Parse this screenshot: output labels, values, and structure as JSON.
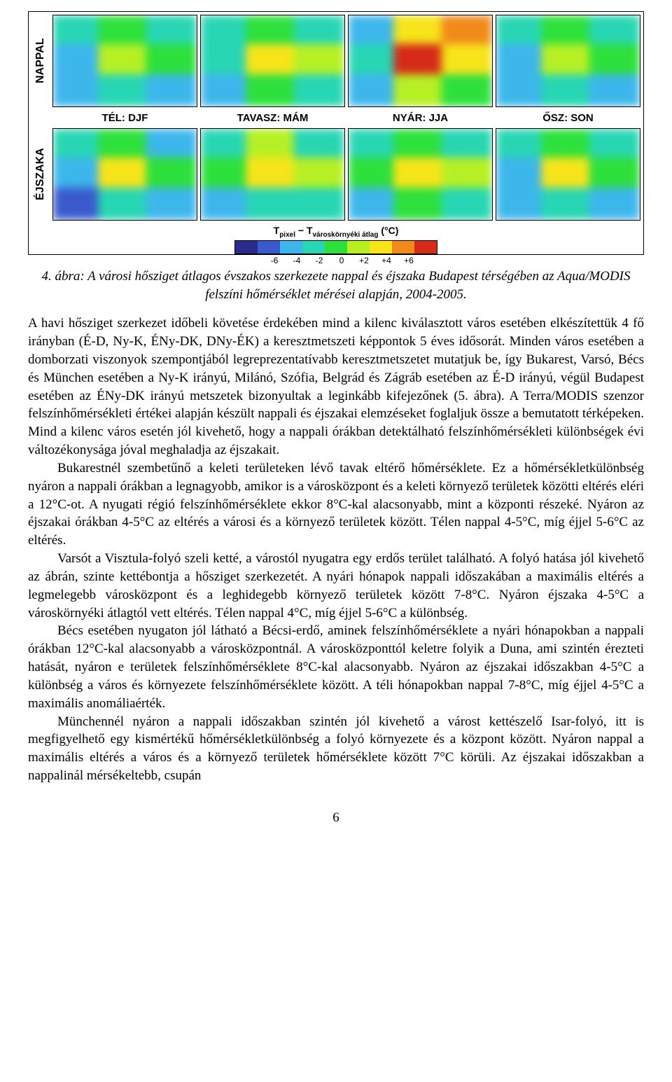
{
  "figure": {
    "row_labels": [
      "NAPPAL",
      "ÉJSZAKA"
    ],
    "col_labels": [
      "TÉL: DJF",
      "TAVASZ: MÁM",
      "NYÁR: JJA",
      "ŐSZ: SON"
    ],
    "legend_title": "Tpixel − Tvároskörnyéki átlag (°C)",
    "legend_sub1": "pixel",
    "legend_sub2": "városkörnyéki átlag",
    "scale_colors": [
      "#2b2b8c",
      "#3a5acc",
      "#3db6ec",
      "#28d6b4",
      "#2ee03c",
      "#b6f024",
      "#f7e41a",
      "#f08a1a",
      "#d62a1a"
    ],
    "scale_ticks": [
      "-6",
      "-4",
      "-2",
      "0",
      "+2",
      "+4",
      "+6"
    ],
    "maps": {
      "nappal_djf": [
        [
          "#28d6b4",
          "#2ee03c",
          "#28d6b4"
        ],
        [
          "#3db6ec",
          "#b6f024",
          "#2ee03c"
        ],
        [
          "#3db6ec",
          "#28d6b4",
          "#3db6ec"
        ]
      ],
      "nappal_mam": [
        [
          "#28d6b4",
          "#2ee03c",
          "#28d6b4"
        ],
        [
          "#28d6b4",
          "#f7e41a",
          "#b6f024"
        ],
        [
          "#3db6ec",
          "#2ee03c",
          "#28d6b4"
        ]
      ],
      "nappal_jja": [
        [
          "#3db6ec",
          "#f7e41a",
          "#f08a1a"
        ],
        [
          "#28d6b4",
          "#d62a1a",
          "#f7e41a"
        ],
        [
          "#3db6ec",
          "#b6f024",
          "#2ee03c"
        ]
      ],
      "nappal_son": [
        [
          "#28d6b4",
          "#2ee03c",
          "#28d6b4"
        ],
        [
          "#3db6ec",
          "#b6f024",
          "#2ee03c"
        ],
        [
          "#3db6ec",
          "#28d6b4",
          "#3db6ec"
        ]
      ],
      "ejszaka_djf": [
        [
          "#28d6b4",
          "#2ee03c",
          "#3db6ec"
        ],
        [
          "#3db6ec",
          "#f7e41a",
          "#2ee03c"
        ],
        [
          "#3a5acc",
          "#28d6b4",
          "#3db6ec"
        ]
      ],
      "ejszaka_mam": [
        [
          "#28d6b4",
          "#b6f024",
          "#28d6b4"
        ],
        [
          "#2ee03c",
          "#f7e41a",
          "#b6f024"
        ],
        [
          "#3db6ec",
          "#28d6b4",
          "#28d6b4"
        ]
      ],
      "ejszaka_jja": [
        [
          "#28d6b4",
          "#2ee03c",
          "#28d6b4"
        ],
        [
          "#2ee03c",
          "#f7e41a",
          "#b6f024"
        ],
        [
          "#3db6ec",
          "#2ee03c",
          "#28d6b4"
        ]
      ],
      "ejszaka_son": [
        [
          "#28d6b4",
          "#2ee03c",
          "#28d6b4"
        ],
        [
          "#3db6ec",
          "#f7e41a",
          "#2ee03c"
        ],
        [
          "#3db6ec",
          "#28d6b4",
          "#3db6ec"
        ]
      ]
    }
  },
  "caption": "4. ábra: A városi hősziget átlagos évszakos szerkezete nappal és éjszaka Budapest térségében az Aqua/MODIS felszíni hőmérséklet mérései alapján, 2004-2005.",
  "paragraphs": [
    "A havi hősziget szerkezet időbeli követése érdekében mind a kilenc kiválasztott város esetében elkészítettük 4 fő irányban (É-D, Ny-K, ÉNy-DK, DNy-ÉK) a keresztmetszeti képpontok 5 éves idősorát. Minden város esetében a domborzati viszonyok szempontjából legreprezentatívabb keresztmetszetet mutatjuk be, így Bukarest, Varsó, Bécs és München esetében a Ny-K irányú, Milánó, Szófia, Belgrád és Zágráb esetében az É-D irányú, végül Budapest esetében az ÉNy-DK irányú metszetek bizonyultak a leginkább kifejezőnek (5. ábra). A Terra/MODIS szenzor felszínhőmérsékleti értékei alapján készült nappali és éjszakai elemzéseket foglaljuk össze a bemutatott térképeken. Mind a kilenc város esetén jól kivehető, hogy a nappali órákban detektálható felszínhőmérsékleti különbségek évi változékonysága jóval meghaladja az éjszakait.",
    "Bukarestnél szembetűnő a keleti területeken lévő tavak eltérő hőmérséklete. Ez a hőmérsékletkülönbség nyáron a nappali órákban a legnagyobb, amikor is a városközpont és a keleti környező területek közötti eltérés eléri a 12°C-ot. A nyugati régió felszínhőmérséklete ekkor 8°C-kal alacsonyabb, mint a központi részeké. Nyáron az éjszakai órákban 4-5°C az eltérés a városi és a környező területek között. Télen nappal 4-5°C, míg éjjel 5-6°C az eltérés.",
    "Varsót a Visztula-folyó szeli ketté, a várostól nyugatra egy erdős terület található. A folyó hatása jól kivehető az ábrán, szinte kettébontja a hősziget szerkezetét. A nyári hónapok nappali időszakában a maximális eltérés a legmelegebb városközpont és a leghidegebb környező területek között 7-8°C. Nyáron éjszaka 4-5°C a városkörnyéki átlagtól vett eltérés. Télen nappal 4°C, míg éjjel 5-6°C a különbség.",
    "Bécs esetében nyugaton jól látható a Bécsi-erdő, aminek felszínhőmérséklete a nyári hónapokban a nappali órákban 12°C-kal alacsonyabb a városközpontnál. A városközponttól keletre folyik a Duna, ami szintén érezteti hatását, nyáron e területek felszínhőmérséklete 8°C-kal alacsonyabb. Nyáron az éjszakai időszakban 4-5°C a különbség a város és környezete felszínhőmérséklete között. A téli hónapokban nappal 7-8°C, míg éjjel 4-5°C a maximális anomáliaérték.",
    "Münchennél nyáron a nappali időszakban szintén jól kivehető a várost kettészelő Isar-folyó, itt is megfigyelhető egy kismértékű hőmérsékletkülönbség a folyó környezete és a központ között. Nyáron nappal a maximális eltérés a város és a környező területek hőmérséklete között 7°C körüli. Az éjszakai időszakban a nappalinál mérsékeltebb, csupán"
  ],
  "page_number": "6"
}
